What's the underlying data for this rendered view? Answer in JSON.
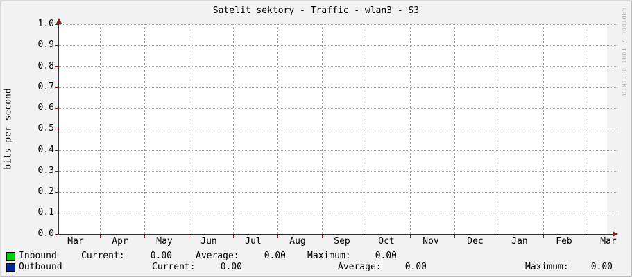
{
  "title": "Satelit sektory - Traffic - wlan3 - S3",
  "ylabel": "bits per second",
  "watermark": "RRDTOOL / TOBI OETIKER",
  "colors": {
    "inbound": "#00CF00",
    "outbound": "#002A97",
    "grid": "#E88B8B",
    "axis": "#2E2E2E",
    "arrow": "#8B1C1C",
    "canvas": "#FFFFFF",
    "background": "#F2F2F2"
  },
  "chart_data": {
    "type": "line",
    "title": "Satelit sektory - Traffic - wlan3 - S3",
    "xlabel": "",
    "ylabel": "bits per second",
    "ylim": [
      0.0,
      1.0
    ],
    "y_ticks": [
      "1.0",
      "0.9",
      "0.8",
      "0.7",
      "0.6",
      "0.5",
      "0.4",
      "0.3",
      "0.2",
      "0.1",
      "0.0"
    ],
    "x_ticks": [
      "Mar",
      "Apr",
      "May",
      "Jun",
      "Jul",
      "Aug",
      "Sep",
      "Oct",
      "Nov",
      "Dec",
      "Jan",
      "Feb",
      "Mar"
    ],
    "grid": true,
    "legend_position": "bottom",
    "series": [
      {
        "name": "Inbound",
        "color": "#00CF00",
        "values": [
          0,
          0,
          0,
          0,
          0,
          0,
          0,
          0,
          0,
          0,
          0,
          0,
          0
        ]
      },
      {
        "name": "Outbound",
        "color": "#002A97",
        "values": [
          0,
          0,
          0,
          0,
          0,
          0,
          0,
          0,
          0,
          0,
          0,
          0,
          0
        ]
      }
    ]
  },
  "legend": {
    "rows": [
      {
        "label": "Inbound",
        "color": "#00CF00",
        "stats": [
          [
            "Current:",
            "0.00"
          ],
          [
            "Average:",
            "0.00"
          ],
          [
            "Maximum:",
            "0.00"
          ]
        ]
      },
      {
        "label": "Outbound",
        "color": "#002A97",
        "stats": [
          [
            "Current:",
            "0.00"
          ],
          [
            "Average:",
            "0.00"
          ],
          [
            "Maximum:",
            "0.00"
          ]
        ]
      }
    ]
  }
}
